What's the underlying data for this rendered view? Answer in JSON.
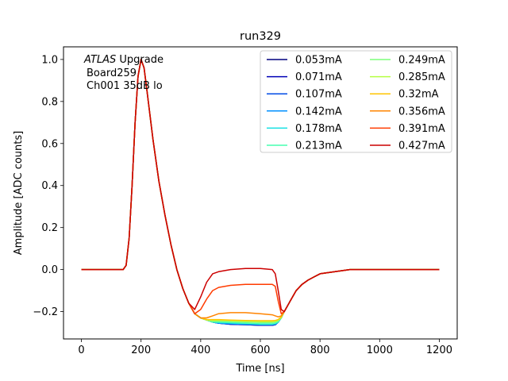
{
  "chart_data": {
    "type": "line",
    "title": "run329",
    "xlabel": "Time [ns]",
    "ylabel": "Amplitude [ADC counts]",
    "xlim": [
      -60,
      1260
    ],
    "ylim": [
      -0.33,
      1.06
    ],
    "xticks": [
      0,
      200,
      400,
      600,
      800,
      1000,
      1200
    ],
    "yticks": [
      -0.2,
      0.0,
      0.2,
      0.4,
      0.6,
      0.8,
      1.0
    ],
    "xtick_labels": [
      "0",
      "200",
      "400",
      "600",
      "800",
      "1000",
      "1200"
    ],
    "ytick_labels": [
      "−0.2",
      "0.0",
      "0.2",
      "0.4",
      "0.6",
      "0.8",
      "1.0"
    ],
    "legend_position": "upper right",
    "legend_columns": 2,
    "annotation": {
      "line1_italic": "ATLAS",
      "line1_rest": " Upgrade",
      "line2": "Board259",
      "line3": "Ch001 35dB lo"
    },
    "x": [
      0,
      140,
      150,
      160,
      170,
      180,
      190,
      200,
      210,
      220,
      240,
      260,
      280,
      300,
      320,
      340,
      360,
      380,
      400,
      420,
      440,
      460,
      500,
      550,
      600,
      640,
      650,
      660,
      670,
      680,
      700,
      720,
      740,
      760,
      780,
      800,
      850,
      900,
      1000,
      1100,
      1200
    ],
    "series": [
      {
        "name": "0.053mA",
        "color": "#00007f",
        "values": [
          0,
          0,
          0.02,
          0.15,
          0.4,
          0.7,
          0.92,
          1.0,
          0.96,
          0.85,
          0.62,
          0.42,
          0.26,
          0.12,
          0.0,
          -0.09,
          -0.16,
          -0.21,
          -0.23,
          -0.24,
          -0.25,
          -0.255,
          -0.26,
          -0.262,
          -0.265,
          -0.265,
          -0.262,
          -0.25,
          -0.23,
          -0.2,
          -0.15,
          -0.1,
          -0.07,
          -0.05,
          -0.035,
          -0.02,
          -0.01,
          0,
          0,
          0,
          0
        ]
      },
      {
        "name": "0.071mA",
        "color": "#0000b6",
        "values": [
          0,
          0,
          0.02,
          0.15,
          0.4,
          0.7,
          0.92,
          1.0,
          0.96,
          0.85,
          0.62,
          0.42,
          0.26,
          0.12,
          0.0,
          -0.09,
          -0.16,
          -0.21,
          -0.23,
          -0.24,
          -0.25,
          -0.255,
          -0.26,
          -0.262,
          -0.265,
          -0.265,
          -0.262,
          -0.25,
          -0.23,
          -0.2,
          -0.15,
          -0.1,
          -0.07,
          -0.05,
          -0.035,
          -0.02,
          -0.01,
          0,
          0,
          0,
          0
        ]
      },
      {
        "name": "0.107mA",
        "color": "#004ae6",
        "values": [
          0,
          0,
          0.02,
          0.15,
          0.4,
          0.7,
          0.92,
          1.0,
          0.96,
          0.85,
          0.62,
          0.42,
          0.26,
          0.12,
          0.0,
          -0.09,
          -0.16,
          -0.21,
          -0.23,
          -0.24,
          -0.25,
          -0.255,
          -0.258,
          -0.26,
          -0.262,
          -0.262,
          -0.26,
          -0.25,
          -0.23,
          -0.2,
          -0.15,
          -0.1,
          -0.07,
          -0.05,
          -0.035,
          -0.02,
          -0.01,
          0,
          0,
          0,
          0
        ]
      },
      {
        "name": "0.142mA",
        "color": "#0090ff",
        "values": [
          0,
          0,
          0.02,
          0.15,
          0.4,
          0.7,
          0.92,
          1.0,
          0.96,
          0.85,
          0.62,
          0.42,
          0.26,
          0.12,
          0.0,
          -0.09,
          -0.16,
          -0.21,
          -0.23,
          -0.24,
          -0.25,
          -0.255,
          -0.258,
          -0.26,
          -0.262,
          -0.262,
          -0.26,
          -0.25,
          -0.23,
          -0.2,
          -0.15,
          -0.1,
          -0.07,
          -0.05,
          -0.035,
          -0.02,
          -0.01,
          0,
          0,
          0,
          0
        ]
      },
      {
        "name": "0.178mA",
        "color": "#15e0e3",
        "values": [
          0,
          0,
          0.02,
          0.15,
          0.4,
          0.7,
          0.92,
          1.0,
          0.96,
          0.85,
          0.62,
          0.42,
          0.26,
          0.12,
          0.0,
          -0.09,
          -0.16,
          -0.21,
          -0.23,
          -0.24,
          -0.25,
          -0.252,
          -0.255,
          -0.257,
          -0.26,
          -0.26,
          -0.258,
          -0.25,
          -0.23,
          -0.2,
          -0.15,
          -0.1,
          -0.07,
          -0.05,
          -0.035,
          -0.02,
          -0.01,
          0,
          0,
          0,
          0
        ]
      },
      {
        "name": "0.213mA",
        "color": "#46ffb0",
        "values": [
          0,
          0,
          0.02,
          0.15,
          0.4,
          0.7,
          0.92,
          1.0,
          0.96,
          0.85,
          0.62,
          0.42,
          0.26,
          0.12,
          0.0,
          -0.09,
          -0.16,
          -0.21,
          -0.23,
          -0.24,
          -0.25,
          -0.25,
          -0.252,
          -0.255,
          -0.258,
          -0.258,
          -0.255,
          -0.248,
          -0.23,
          -0.2,
          -0.15,
          -0.1,
          -0.07,
          -0.05,
          -0.035,
          -0.02,
          -0.01,
          0,
          0,
          0,
          0
        ]
      },
      {
        "name": "0.249mA",
        "color": "#7dff7a",
        "values": [
          0,
          0,
          0.02,
          0.15,
          0.4,
          0.7,
          0.92,
          1.0,
          0.96,
          0.85,
          0.62,
          0.42,
          0.26,
          0.12,
          0.0,
          -0.09,
          -0.16,
          -0.21,
          -0.23,
          -0.24,
          -0.245,
          -0.245,
          -0.247,
          -0.25,
          -0.252,
          -0.252,
          -0.25,
          -0.245,
          -0.23,
          -0.2,
          -0.15,
          -0.1,
          -0.07,
          -0.05,
          -0.035,
          -0.02,
          -0.01,
          0,
          0,
          0,
          0
        ]
      },
      {
        "name": "0.285mA",
        "color": "#b4ff43",
        "values": [
          0,
          0,
          0.02,
          0.15,
          0.4,
          0.7,
          0.92,
          1.0,
          0.96,
          0.85,
          0.62,
          0.42,
          0.26,
          0.12,
          0.0,
          -0.09,
          -0.16,
          -0.21,
          -0.23,
          -0.24,
          -0.242,
          -0.242,
          -0.244,
          -0.246,
          -0.248,
          -0.248,
          -0.246,
          -0.24,
          -0.228,
          -0.2,
          -0.15,
          -0.1,
          -0.07,
          -0.05,
          -0.035,
          -0.02,
          -0.01,
          0,
          0,
          0,
          0
        ]
      },
      {
        "name": "0.32mA",
        "color": "#ffc400",
        "values": [
          0,
          0,
          0.02,
          0.15,
          0.4,
          0.7,
          0.92,
          1.0,
          0.96,
          0.85,
          0.62,
          0.42,
          0.26,
          0.12,
          0.0,
          -0.09,
          -0.16,
          -0.21,
          -0.23,
          -0.238,
          -0.238,
          -0.238,
          -0.24,
          -0.242,
          -0.243,
          -0.243,
          -0.242,
          -0.238,
          -0.225,
          -0.2,
          -0.15,
          -0.1,
          -0.07,
          -0.05,
          -0.035,
          -0.02,
          -0.01,
          0,
          0,
          0,
          0
        ]
      },
      {
        "name": "0.356mA",
        "color": "#ff8400",
        "values": [
          0,
          0,
          0.02,
          0.15,
          0.4,
          0.7,
          0.92,
          1.0,
          0.96,
          0.85,
          0.62,
          0.42,
          0.26,
          0.12,
          0.0,
          -0.09,
          -0.16,
          -0.21,
          -0.23,
          -0.23,
          -0.22,
          -0.21,
          -0.205,
          -0.205,
          -0.21,
          -0.215,
          -0.22,
          -0.225,
          -0.22,
          -0.2,
          -0.15,
          -0.1,
          -0.07,
          -0.05,
          -0.035,
          -0.02,
          -0.01,
          0,
          0,
          0,
          0
        ]
      },
      {
        "name": "0.391mA",
        "color": "#ff3b00",
        "values": [
          0,
          0,
          0.02,
          0.15,
          0.4,
          0.7,
          0.92,
          1.0,
          0.96,
          0.85,
          0.62,
          0.42,
          0.26,
          0.12,
          0.0,
          -0.09,
          -0.16,
          -0.21,
          -0.19,
          -0.14,
          -0.1,
          -0.085,
          -0.075,
          -0.07,
          -0.07,
          -0.07,
          -0.08,
          -0.15,
          -0.21,
          -0.2,
          -0.15,
          -0.1,
          -0.07,
          -0.05,
          -0.035,
          -0.02,
          -0.01,
          0,
          0,
          0,
          0
        ]
      },
      {
        "name": "0.427mA",
        "color": "#cc0000",
        "values": [
          0,
          0,
          0.02,
          0.15,
          0.4,
          0.7,
          0.92,
          1.0,
          0.96,
          0.85,
          0.62,
          0.42,
          0.26,
          0.12,
          0.0,
          -0.09,
          -0.16,
          -0.19,
          -0.13,
          -0.06,
          -0.02,
          -0.01,
          0.0,
          0.005,
          0.005,
          0.0,
          -0.02,
          -0.1,
          -0.19,
          -0.2,
          -0.15,
          -0.1,
          -0.07,
          -0.05,
          -0.035,
          -0.02,
          -0.01,
          0,
          0,
          0,
          0
        ]
      }
    ]
  }
}
